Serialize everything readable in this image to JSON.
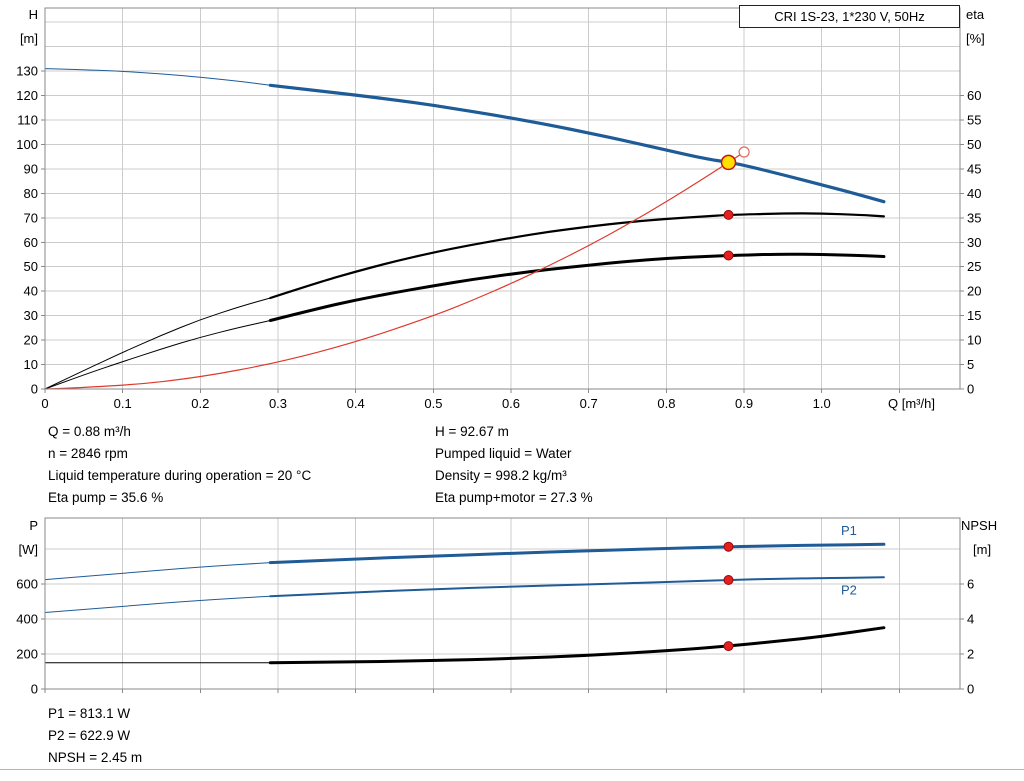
{
  "colors": {
    "blue": "#1e5b97",
    "black": "#000000",
    "red": "#dd3a2e",
    "grid": "#cccccc",
    "frame": "#8a8a8a",
    "marker_red": "#e61e1e",
    "marker_red_edge": "#8f0d0d",
    "marker_yellow": "#ffdf00",
    "marker_yellow_edge": "#c41212"
  },
  "info": {
    "left": [
      "Q = 0.88 m³/h",
      "n = 2846 rpm",
      "Liquid temperature during operation = 20 °C",
      "Eta pump = 35.6 %"
    ],
    "right": [
      "H = 92.67 m",
      "Pumped liquid = Water",
      "Density = 998.2 kg/m³",
      "Eta pump+motor = 27.3 %"
    ]
  },
  "footer": [
    "P1 = 813.1 W",
    "P2 = 622.9 W",
    "NPSH = 2.45 m"
  ],
  "chart_data": [
    {
      "id": "hq",
      "type": "line",
      "title": "CRI 1S-23, 1*230 V, 50Hz",
      "x": {
        "name": "Q",
        "unit": "[m³/h]",
        "min": 0,
        "max": 1.178,
        "ticks": [
          "0",
          "0.1",
          "0.2",
          "0.3",
          "0.4",
          "0.5",
          "0.6",
          "0.7",
          "0.8",
          "0.9",
          "1.0"
        ],
        "grid": [
          0.1,
          0.2,
          0.3,
          0.4,
          0.5,
          0.6,
          0.7,
          0.8,
          0.9,
          1.0,
          1.1
        ]
      },
      "y_left": {
        "name": "H",
        "unit": "[m]",
        "min": 0,
        "max": 155.8,
        "ticks": [
          "0",
          "10",
          "20",
          "30",
          "40",
          "50",
          "60",
          "70",
          "80",
          "90",
          "100",
          "110",
          "120",
          "130"
        ],
        "grid": [
          10,
          20,
          30,
          40,
          50,
          60,
          70,
          80,
          90,
          100,
          110,
          120,
          130,
          140,
          150
        ]
      },
      "y_right": {
        "name": "eta",
        "unit": "[%]",
        "min": 0,
        "max": 77.9,
        "ticks": [
          "0",
          "5",
          "10",
          "15",
          "20",
          "25",
          "30",
          "35",
          "40",
          "45",
          "50",
          "55",
          "60"
        ]
      },
      "series": [
        {
          "name": "head-curve-thin",
          "axis": "left",
          "color": "blue",
          "width": 1,
          "points": [
            [
              0,
              131
            ],
            [
              0.05,
              130.6
            ],
            [
              0.1,
              129.9
            ],
            [
              0.15,
              128.9
            ],
            [
              0.2,
              127.5
            ],
            [
              0.25,
              125.9
            ],
            [
              0.29,
              124.2
            ]
          ]
        },
        {
          "name": "head-curve",
          "axis": "left",
          "color": "blue",
          "width": 3.2,
          "points": [
            [
              0.29,
              124.2
            ],
            [
              0.35,
              122.0
            ],
            [
              0.4,
              120.2
            ],
            [
              0.45,
              118.2
            ],
            [
              0.5,
              116.0
            ],
            [
              0.55,
              113.5
            ],
            [
              0.6,
              110.8
            ],
            [
              0.65,
              107.9
            ],
            [
              0.7,
              104.7
            ],
            [
              0.75,
              101.3
            ],
            [
              0.8,
              97.7
            ],
            [
              0.85,
              94.2
            ],
            [
              0.88,
              92.67
            ],
            [
              0.9,
              91.5
            ],
            [
              0.95,
              87.6
            ],
            [
              1.0,
              83.5
            ],
            [
              1.05,
              79.3
            ],
            [
              1.08,
              76.6
            ]
          ]
        },
        {
          "name": "eta-pump-curve-thin",
          "axis": "right",
          "color": "black",
          "width": 1,
          "points": [
            [
              0,
              0
            ],
            [
              0.05,
              3.8
            ],
            [
              0.1,
              7.5
            ],
            [
              0.15,
              11.0
            ],
            [
              0.2,
              14.2
            ],
            [
              0.25,
              16.8
            ],
            [
              0.29,
              18.6
            ]
          ]
        },
        {
          "name": "eta-pump-curve",
          "axis": "right",
          "color": "black",
          "width": 2.2,
          "points": [
            [
              0.29,
              18.6
            ],
            [
              0.35,
              21.7
            ],
            [
              0.4,
              24.0
            ],
            [
              0.45,
              26.1
            ],
            [
              0.5,
              27.9
            ],
            [
              0.55,
              29.5
            ],
            [
              0.6,
              30.9
            ],
            [
              0.65,
              32.2
            ],
            [
              0.7,
              33.2
            ],
            [
              0.75,
              34.1
            ],
            [
              0.8,
              34.8
            ],
            [
              0.85,
              35.3
            ],
            [
              0.88,
              35.6
            ],
            [
              0.95,
              35.9
            ],
            [
              1.0,
              35.9
            ],
            [
              1.05,
              35.6
            ],
            [
              1.08,
              35.3
            ]
          ]
        },
        {
          "name": "eta-pump-motor-curve-thin",
          "axis": "right",
          "color": "black",
          "width": 1,
          "points": [
            [
              0,
              0
            ],
            [
              0.05,
              2.9
            ],
            [
              0.1,
              5.6
            ],
            [
              0.15,
              8.2
            ],
            [
              0.2,
              10.6
            ],
            [
              0.25,
              12.6
            ],
            [
              0.29,
              14.0
            ]
          ]
        },
        {
          "name": "eta-pump-motor-curve",
          "axis": "right",
          "color": "black",
          "width": 3,
          "points": [
            [
              0.29,
              14.0
            ],
            [
              0.35,
              16.4
            ],
            [
              0.4,
              18.2
            ],
            [
              0.45,
              19.7
            ],
            [
              0.5,
              21.1
            ],
            [
              0.55,
              22.4
            ],
            [
              0.6,
              23.5
            ],
            [
              0.65,
              24.5
            ],
            [
              0.7,
              25.3
            ],
            [
              0.75,
              26.1
            ],
            [
              0.8,
              26.7
            ],
            [
              0.85,
              27.1
            ],
            [
              0.88,
              27.3
            ],
            [
              0.95,
              27.6
            ],
            [
              1.0,
              27.5
            ],
            [
              1.05,
              27.3
            ],
            [
              1.08,
              27.1
            ]
          ]
        },
        {
          "name": "system-curve",
          "axis": "left",
          "color": "red",
          "width": 1.2,
          "points": [
            [
              0,
              0
            ],
            [
              0.1,
              1.2
            ],
            [
              0.2,
              4.8
            ],
            [
              0.3,
              10.8
            ],
            [
              0.4,
              19.1
            ],
            [
              0.5,
              29.9
            ],
            [
              0.55,
              36.2
            ],
            [
              0.6,
              43.1
            ],
            [
              0.65,
              50.6
            ],
            [
              0.7,
              58.6
            ],
            [
              0.75,
              67.3
            ],
            [
              0.8,
              76.6
            ],
            [
              0.85,
              86.5
            ],
            [
              0.88,
              92.67
            ],
            [
              0.9,
              96.9
            ]
          ]
        }
      ],
      "markers": [
        {
          "name": "system-curve-end-point",
          "axis": "left",
          "x": 0.9,
          "y": 96.9,
          "r": 5,
          "fill": "#ffffff",
          "stroke": "#e06a60",
          "sw": 1.2
        },
        {
          "name": "duty-point",
          "axis": "left",
          "x": 0.88,
          "y": 92.67,
          "r": 7,
          "fill": "marker_yellow",
          "stroke": "marker_yellow_edge",
          "sw": 1.5
        },
        {
          "name": "eta-pump-point",
          "axis": "right",
          "x": 0.88,
          "y": 35.6,
          "r": 4.5,
          "fill": "marker_red",
          "stroke": "marker_red_edge",
          "sw": 1
        },
        {
          "name": "eta-pump-motor-point",
          "axis": "right",
          "x": 0.88,
          "y": 27.3,
          "r": 4.5,
          "fill": "marker_red",
          "stroke": "marker_red_edge",
          "sw": 1
        }
      ],
      "labels": []
    },
    {
      "id": "power",
      "type": "line",
      "title": "",
      "x": {
        "name": "",
        "unit": "",
        "min": 0,
        "max": 1.178,
        "ticks": [],
        "grid": [
          0.1,
          0.2,
          0.3,
          0.4,
          0.5,
          0.6,
          0.7,
          0.8,
          0.9,
          1.0,
          1.1
        ]
      },
      "y_left": {
        "name": "P",
        "unit": "[W]",
        "min": 0,
        "max": 977,
        "ticks": [
          "0",
          "200",
          "400",
          "600"
        ],
        "grid": [
          200,
          400,
          600,
          800
        ]
      },
      "y_right": {
        "name": "NPSH",
        "unit": "[m]",
        "min": 0,
        "max": 9.77,
        "ticks": [
          "0",
          "2",
          "4",
          "6"
        ]
      },
      "series": [
        {
          "name": "p1-curve-thin",
          "axis": "left",
          "color": "blue",
          "width": 1,
          "points": [
            [
              0,
              625
            ],
            [
              0.1,
              662
            ],
            [
              0.2,
              697
            ],
            [
              0.29,
              722
            ]
          ]
        },
        {
          "name": "p1-curve",
          "axis": "left",
          "color": "blue",
          "width": 3,
          "points": [
            [
              0.29,
              722
            ],
            [
              0.4,
              743
            ],
            [
              0.5,
              760
            ],
            [
              0.6,
              775
            ],
            [
              0.7,
              790
            ],
            [
              0.8,
              803
            ],
            [
              0.88,
              813
            ],
            [
              0.95,
              819
            ],
            [
              1.0,
              822
            ],
            [
              1.08,
              827
            ]
          ]
        },
        {
          "name": "p2-curve-thin",
          "axis": "left",
          "color": "blue",
          "width": 1,
          "points": [
            [
              0,
              437
            ],
            [
              0.1,
              473
            ],
            [
              0.2,
              506
            ],
            [
              0.29,
              530
            ]
          ]
        },
        {
          "name": "p2-curve",
          "axis": "left",
          "color": "blue",
          "width": 2,
          "points": [
            [
              0.29,
              530
            ],
            [
              0.4,
              553
            ],
            [
              0.5,
              570
            ],
            [
              0.6,
              585
            ],
            [
              0.7,
              598
            ],
            [
              0.8,
              611
            ],
            [
              0.88,
              623
            ],
            [
              0.95,
              630
            ],
            [
              1.0,
              634
            ],
            [
              1.08,
              638
            ]
          ]
        },
        {
          "name": "npsh-curve-thin",
          "axis": "right",
          "color": "black",
          "width": 1,
          "points": [
            [
              0,
              1.5
            ],
            [
              0.15,
              1.5
            ],
            [
              0.29,
              1.5
            ]
          ]
        },
        {
          "name": "npsh-curve",
          "axis": "right",
          "color": "black",
          "width": 3,
          "points": [
            [
              0.29,
              1.5
            ],
            [
              0.4,
              1.54
            ],
            [
              0.5,
              1.62
            ],
            [
              0.6,
              1.74
            ],
            [
              0.7,
              1.92
            ],
            [
              0.8,
              2.18
            ],
            [
              0.88,
              2.45
            ],
            [
              0.95,
              2.76
            ],
            [
              1.0,
              3.0
            ],
            [
              1.08,
              3.5
            ]
          ]
        }
      ],
      "markers": [
        {
          "name": "p1-point",
          "axis": "left",
          "x": 0.88,
          "y": 813.1,
          "r": 4.5,
          "fill": "marker_red",
          "stroke": "marker_red_edge",
          "sw": 1
        },
        {
          "name": "p2-point",
          "axis": "left",
          "x": 0.88,
          "y": 622.9,
          "r": 4.5,
          "fill": "marker_red",
          "stroke": "marker_red_edge",
          "sw": 1
        },
        {
          "name": "npsh-point",
          "axis": "right",
          "x": 0.88,
          "y": 2.45,
          "r": 4.5,
          "fill": "marker_red",
          "stroke": "marker_red_edge",
          "sw": 1
        }
      ],
      "labels": [
        {
          "name": "p1-label",
          "text": "P1",
          "axis": "left",
          "x": 1.035,
          "y": 880,
          "color": "blue"
        },
        {
          "name": "p2-label",
          "text": "P2",
          "axis": "left",
          "x": 1.035,
          "y": 540,
          "color": "blue"
        }
      ]
    }
  ]
}
